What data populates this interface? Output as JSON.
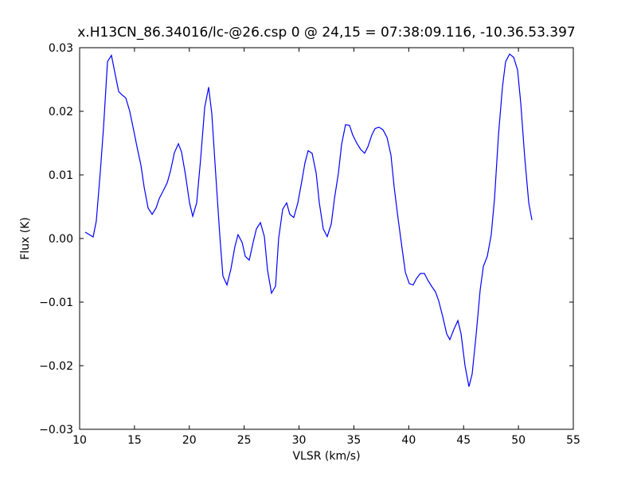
{
  "chart_data": {
    "type": "line",
    "title": "x.H13CN_86.34016/lc-@26.csp 0 @ 24,15 = 07:38:09.116, -10.36.53.397",
    "xlabel": "VLSR (km/s)",
    "ylabel": "Flux (K)",
    "x": [
      10.51,
      11.23,
      11.52,
      11.89,
      12.18,
      12.54,
      12.9,
      13.27,
      13.56,
      13.92,
      14.21,
      14.57,
      14.94,
      15.23,
      15.59,
      15.88,
      16.24,
      16.61,
      16.97,
      17.26,
      17.62,
      17.99,
      18.28,
      18.64,
      19.0,
      19.29,
      19.65,
      20.02,
      20.31,
      20.67,
      21.03,
      21.4,
      21.76,
      22.05,
      22.41,
      22.78,
      23.06,
      23.43,
      23.79,
      24.15,
      24.44,
      24.81,
      25.1,
      25.46,
      25.82,
      26.11,
      26.48,
      26.84,
      27.13,
      27.49,
      27.86,
      28.14,
      28.51,
      28.87,
      29.16,
      29.52,
      29.89,
      30.25,
      30.54,
      30.83,
      31.19,
      31.56,
      31.85,
      32.21,
      32.57,
      32.94,
      33.23,
      33.59,
      33.88,
      34.24,
      34.6,
      34.89,
      35.26,
      35.62,
      35.98,
      36.27,
      36.64,
      36.93,
      37.29,
      37.65,
      38.02,
      38.38,
      38.67,
      39.03,
      39.39,
      39.69,
      40.05,
      40.41,
      40.7,
      41.06,
      41.43,
      41.72,
      42.08,
      42.44,
      42.73,
      43.1,
      43.46,
      43.75,
      44.11,
      44.48,
      44.77,
      45.13,
      45.49,
      45.78,
      46.15,
      46.51,
      46.8,
      47.16,
      47.52,
      47.82,
      48.18,
      48.54,
      48.83,
      49.19,
      49.56,
      49.92,
      50.21,
      50.57,
      50.94,
      51.23
    ],
    "series": [
      {
        "color": "#0000ff",
        "values": [
          0.001,
          0.00025,
          0.00275,
          0.0106,
          0.0175,
          0.0278,
          0.0288,
          0.0256,
          0.0231,
          0.0225,
          0.0221,
          0.02,
          0.0169,
          0.0144,
          0.0115,
          0.0081,
          0.0048,
          0.0038,
          0.0048,
          0.0063,
          0.0075,
          0.0088,
          0.0106,
          0.0135,
          0.0149,
          0.0136,
          0.01,
          0.0056,
          0.0035,
          0.0056,
          0.0125,
          0.0206,
          0.0238,
          0.0196,
          0.01,
          0.0004,
          -0.0059,
          -0.0073,
          -0.0048,
          -0.0013,
          0.0006,
          -0.0006,
          -0.0028,
          -0.0034,
          -0.0006,
          0.0015,
          0.0025,
          0.0003,
          -0.005,
          -0.0086,
          -0.0075,
          0,
          0.0046,
          0.0056,
          0.0038,
          0.0033,
          0.0056,
          0.009,
          0.0119,
          0.0138,
          0.0134,
          0.0103,
          0.0056,
          0.0015,
          0.0003,
          0.0023,
          0.0063,
          0.0103,
          0.0148,
          0.0179,
          0.0178,
          0.0163,
          0.015,
          0.014,
          0.0134,
          0.0144,
          0.0163,
          0.0173,
          0.0175,
          0.0171,
          0.0159,
          0.0131,
          0.0081,
          0.0031,
          -0.0015,
          -0.0053,
          -0.0071,
          -0.0073,
          -0.0063,
          -0.0055,
          -0.0055,
          -0.0065,
          -0.0075,
          -0.0084,
          -0.0098,
          -0.0123,
          -0.015,
          -0.0159,
          -0.0143,
          -0.0129,
          -0.015,
          -0.02,
          -0.0233,
          -0.0213,
          -0.015,
          -0.0081,
          -0.0044,
          -0.0028,
          0.0006,
          0.0063,
          0.0163,
          0.0238,
          0.0278,
          0.029,
          0.0285,
          0.0265,
          0.0213,
          0.0128,
          0.0056,
          0.0029
        ]
      }
    ],
    "xlim": [
      10,
      55
    ],
    "xticks": [
      10,
      15,
      20,
      25,
      30,
      35,
      40,
      45,
      50,
      55
    ],
    "ylim": [
      -0.03,
      0.03
    ],
    "yticks": [
      {
        "value": -0.03,
        "label": "−0.03"
      },
      {
        "value": -0.02,
        "label": "−0.02"
      },
      {
        "value": -0.01,
        "label": "−0.01"
      },
      {
        "value": 0,
        "label": "0.00"
      },
      0.01,
      0.02,
      0.03
    ],
    "grid": false
  }
}
